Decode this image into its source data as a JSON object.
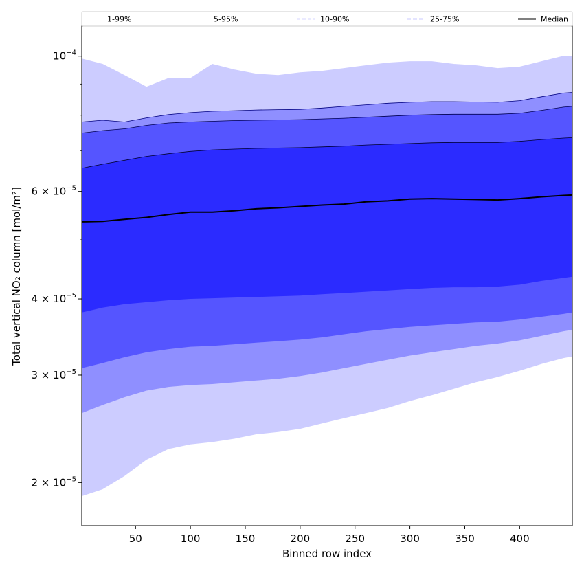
{
  "chart_data": {
    "type": "area",
    "title": "",
    "xlabel": "Binned row index",
    "ylabel": "Total vertical NO₂ column [mol/m²]",
    "y_scale": "log",
    "xlim": [
      1,
      448
    ],
    "ylim": [
      1.7e-05,
      0.000112
    ],
    "grid": false,
    "legend_position": "top",
    "x_ticks": [
      50,
      100,
      150,
      200,
      250,
      300,
      350,
      400
    ],
    "x_tick_labels": [
      "50",
      "100",
      "150",
      "200",
      "250",
      "300",
      "350",
      "400"
    ],
    "y_ticks": [
      2e-05,
      3e-05,
      4e-05,
      6e-05,
      0.0001
    ],
    "y_tick_labels": [
      {
        "base": "2 × 10",
        "exp": "−5"
      },
      {
        "base": "3 × 10",
        "exp": "−5"
      },
      {
        "base": "4 × 10",
        "exp": "−5"
      },
      {
        "base": "6 × 10",
        "exp": "−5"
      },
      {
        "base": "10",
        "exp": "−4"
      }
    ],
    "y_minor_ticks": [
      5e-05,
      7e-05,
      8e-05,
      9e-05
    ],
    "x": [
      1,
      20,
      40,
      60,
      80,
      100,
      120,
      140,
      160,
      180,
      200,
      220,
      240,
      260,
      280,
      300,
      320,
      340,
      360,
      380,
      400,
      420,
      440,
      448
    ],
    "bands": [
      {
        "name": "1-99%",
        "color": "#ccccff",
        "line_color": "#ccccff",
        "lower": [
          1.9e-05,
          1.95e-05,
          2.05e-05,
          2.18e-05,
          2.27e-05,
          2.31e-05,
          2.33e-05,
          2.36e-05,
          2.4e-05,
          2.42e-05,
          2.45e-05,
          2.5e-05,
          2.55e-05,
          2.6e-05,
          2.65e-05,
          2.72e-05,
          2.78e-05,
          2.85e-05,
          2.92e-05,
          2.98e-05,
          3.05e-05,
          3.13e-05,
          3.2e-05,
          3.22e-05
        ],
        "upper": [
          9.9e-05,
          9.7e-05,
          9.3e-05,
          8.9e-05,
          9.2e-05,
          9.2e-05,
          9.7e-05,
          9.5e-05,
          9.35e-05,
          9.3e-05,
          9.4e-05,
          9.45e-05,
          9.55e-05,
          9.65e-05,
          9.75e-05,
          9.8e-05,
          9.8e-05,
          9.7e-05,
          9.65e-05,
          9.55e-05,
          9.6e-05,
          9.8e-05,
          0.0001,
          0.0001
        ]
      },
      {
        "name": "5-95%",
        "color": "#8f8fff",
        "line_color": "#000080",
        "lower": [
          2.6e-05,
          2.68e-05,
          2.76e-05,
          2.83e-05,
          2.87e-05,
          2.89e-05,
          2.9e-05,
          2.92e-05,
          2.94e-05,
          2.96e-05,
          2.99e-05,
          3.03e-05,
          3.08e-05,
          3.13e-05,
          3.18e-05,
          3.23e-05,
          3.27e-05,
          3.31e-05,
          3.35e-05,
          3.38e-05,
          3.42e-05,
          3.48e-05,
          3.54e-05,
          3.56e-05
        ],
        "upper": [
          7.8e-05,
          7.85e-05,
          7.8e-05,
          7.92e-05,
          8.02e-05,
          8.08e-05,
          8.12e-05,
          8.14e-05,
          8.16e-05,
          8.17e-05,
          8.18e-05,
          8.22e-05,
          8.27e-05,
          8.32e-05,
          8.37e-05,
          8.4e-05,
          8.42e-05,
          8.42e-05,
          8.41e-05,
          8.4e-05,
          8.45e-05,
          8.58e-05,
          8.7e-05,
          8.72e-05
        ]
      },
      {
        "name": "10-90%",
        "color": "#5555ff",
        "line_color": "#000050",
        "lower": [
          3.08e-05,
          3.14e-05,
          3.21e-05,
          3.27e-05,
          3.31e-05,
          3.34e-05,
          3.35e-05,
          3.37e-05,
          3.39e-05,
          3.41e-05,
          3.43e-05,
          3.46e-05,
          3.5e-05,
          3.54e-05,
          3.57e-05,
          3.6e-05,
          3.62e-05,
          3.64e-05,
          3.66e-05,
          3.67e-05,
          3.7e-05,
          3.74e-05,
          3.78e-05,
          3.8e-05
        ],
        "upper": [
          7.48e-05,
          7.55e-05,
          7.6e-05,
          7.7e-05,
          7.77e-05,
          7.8e-05,
          7.82e-05,
          7.84e-05,
          7.85e-05,
          7.86e-05,
          7.87e-05,
          7.89e-05,
          7.91e-05,
          7.94e-05,
          7.97e-05,
          8e-05,
          8.02e-05,
          8.03e-05,
          8.03e-05,
          8.03e-05,
          8.06e-05,
          8.15e-05,
          8.25e-05,
          8.27e-05
        ]
      },
      {
        "name": "25-75%",
        "color": "#2b2bff",
        "line_color": "#000030",
        "lower": [
          3.8e-05,
          3.87e-05,
          3.92e-05,
          3.95e-05,
          3.98e-05,
          4e-05,
          4.01e-05,
          4.02e-05,
          4.03e-05,
          4.04e-05,
          4.05e-05,
          4.07e-05,
          4.09e-05,
          4.11e-05,
          4.13e-05,
          4.15e-05,
          4.17e-05,
          4.18e-05,
          4.18e-05,
          4.19e-05,
          4.22e-05,
          4.28e-05,
          4.33e-05,
          4.35e-05
        ],
        "upper": [
          6.55e-05,
          6.65e-05,
          6.75e-05,
          6.85e-05,
          6.92e-05,
          6.98e-05,
          7.02e-05,
          7.04e-05,
          7.06e-05,
          7.07e-05,
          7.08e-05,
          7.1e-05,
          7.12e-05,
          7.15e-05,
          7.17e-05,
          7.19e-05,
          7.21e-05,
          7.22e-05,
          7.22e-05,
          7.22e-05,
          7.25e-05,
          7.3e-05,
          7.34e-05,
          7.35e-05
        ]
      }
    ],
    "median": {
      "name": "Median",
      "color": "#000000",
      "values": [
        5.35e-05,
        5.36e-05,
        5.4e-05,
        5.44e-05,
        5.5e-05,
        5.55e-05,
        5.55e-05,
        5.58e-05,
        5.62e-05,
        5.64e-05,
        5.67e-05,
        5.7e-05,
        5.72e-05,
        5.77e-05,
        5.79e-05,
        5.83e-05,
        5.84e-05,
        5.83e-05,
        5.82e-05,
        5.81e-05,
        5.84e-05,
        5.88e-05,
        5.91e-05,
        5.92e-05
      ]
    }
  }
}
